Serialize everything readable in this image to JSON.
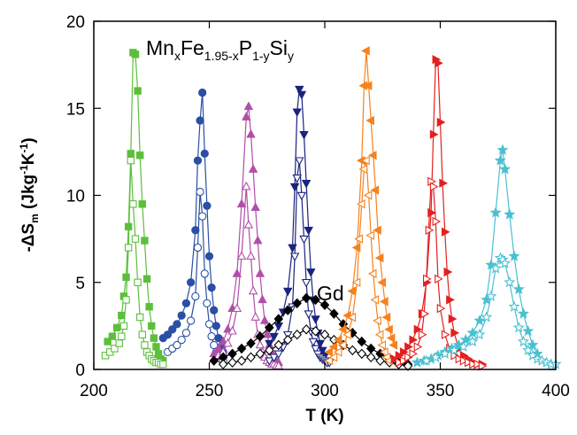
{
  "chart_data": {
    "type": "scatter",
    "title": "",
    "xlabel": "T (K)",
    "ylabel_main": "-ΔS",
    "ylabel_sub": "m",
    "ylabel_units_prefix": " (Jkg",
    "ylabel_units_exp1": "-1",
    "ylabel_units_mid": "K",
    "ylabel_units_exp2": "-1",
    "ylabel_units_suffix": ")",
    "xlim": [
      200,
      400
    ],
    "ylim": [
      0,
      20
    ],
    "xticks": [
      200,
      250,
      300,
      350,
      400
    ],
    "yticks": [
      0,
      5,
      10,
      15,
      20
    ],
    "grid": false,
    "annotations": {
      "formula": {
        "t1": "Mn",
        "s1": "x",
        "t2": "Fe",
        "s2": "1.95-x",
        "t3": "P",
        "s3": "1-y",
        "t4": "Si",
        "s4": "y"
      },
      "gd_label": "Gd"
    },
    "series": [
      {
        "color": "#5cbf3c",
        "marker": "square",
        "filled": true,
        "x": [
          206,
          208,
          210,
          212,
          213,
          214,
          215,
          216,
          217,
          218,
          219,
          220,
          221,
          222,
          223,
          224,
          225,
          226,
          227,
          228,
          229,
          230
        ],
        "y": [
          1.6,
          1.9,
          2.4,
          3.1,
          4.2,
          5.3,
          8.2,
          12.4,
          18.2,
          18.1,
          16,
          12.3,
          9.5,
          7.4,
          5.2,
          3.6,
          2.5,
          1.8,
          1.3,
          0.9,
          0.6,
          0.5
        ]
      },
      {
        "color": "#5cbf3c",
        "marker": "square",
        "filled": false,
        "x": [
          205,
          207,
          209,
          211,
          212,
          213,
          214,
          215,
          216,
          217,
          218,
          219,
          220,
          221,
          222,
          223,
          224,
          225,
          226,
          227,
          228,
          229,
          230
        ],
        "y": [
          0.8,
          1.0,
          1.2,
          1.5,
          1.9,
          2.5,
          4.0,
          7.0,
          12.0,
          9.5,
          7.5,
          5.0,
          3.0,
          2.0,
          1.4,
          1.0,
          0.8,
          0.6,
          0.5,
          0.4,
          0.4,
          0.3,
          0.3
        ]
      },
      {
        "color": "#2a4fa5",
        "marker": "circle",
        "filled": true,
        "x": [
          230,
          232,
          234,
          236,
          238,
          240,
          242,
          244,
          245,
          246,
          247,
          248,
          249,
          250,
          251,
          252,
          253,
          254,
          255,
          256
        ],
        "y": [
          1.8,
          2.0,
          2.3,
          2.6,
          3.1,
          3.8,
          5.0,
          8.0,
          12.0,
          14.3,
          15.9,
          12.4,
          9.4,
          6.5,
          4.7,
          3.4,
          2.5,
          1.8,
          1.3,
          1.0
        ]
      },
      {
        "color": "#2a4fa5",
        "marker": "circle",
        "filled": false,
        "x": [
          232,
          234,
          236,
          238,
          240,
          242,
          244,
          245,
          246,
          247,
          248,
          249,
          250,
          251,
          252,
          253,
          254,
          255,
          256
        ],
        "y": [
          1.0,
          1.2,
          1.4,
          1.7,
          2.1,
          2.8,
          4.2,
          7.0,
          10.2,
          8.8,
          5.5,
          3.8,
          2.6,
          1.9,
          1.4,
          1.0,
          0.8,
          0.6,
          0.5
        ]
      },
      {
        "color": "#b14ea8",
        "marker": "triangle-up",
        "filled": true,
        "x": [
          252,
          254,
          256,
          258,
          260,
          262,
          264,
          266,
          267,
          268,
          269,
          270,
          271,
          272,
          273,
          274,
          275,
          276,
          277,
          278,
          279,
          280
        ],
        "y": [
          0.9,
          1.2,
          1.6,
          2.3,
          3.5,
          5.5,
          9.5,
          14.5,
          15.1,
          13.5,
          11.5,
          9.3,
          7.4,
          5.5,
          4.0,
          2.8,
          2.0,
          1.4,
          1.0,
          0.7,
          0.5,
          0.4
        ]
      },
      {
        "color": "#b14ea8",
        "marker": "triangle-up",
        "filled": false,
        "x": [
          252,
          254,
          256,
          258,
          260,
          262,
          264,
          266,
          267,
          268,
          269,
          270,
          271,
          272,
          273,
          274,
          275,
          276,
          277,
          278,
          279,
          280
        ],
        "y": [
          0.6,
          0.8,
          1.0,
          1.5,
          2.2,
          3.5,
          6.5,
          10.5,
          8.3,
          6.5,
          4.5,
          3.0,
          2.0,
          1.4,
          1.0,
          0.7,
          0.5,
          0.4,
          0.3,
          0.3,
          0.2,
          0.2
        ]
      },
      {
        "color": "#1a237e",
        "marker": "triangle-down",
        "filled": true,
        "x": [
          276,
          278,
          280,
          282,
          284,
          286,
          287,
          288,
          289,
          290,
          291,
          292,
          293,
          294,
          295,
          296,
          297,
          298,
          299,
          300
        ],
        "y": [
          1.5,
          1.9,
          2.5,
          3.3,
          4.5,
          7.0,
          10.5,
          14.8,
          16.1,
          15.8,
          13.5,
          10.7,
          8.0,
          5.6,
          4.0,
          2.9,
          2.1,
          1.5,
          1.1,
          0.8
        ]
      },
      {
        "color": "#1a237e",
        "marker": "triangle-down",
        "filled": false,
        "x": [
          276,
          278,
          280,
          282,
          284,
          286,
          287,
          288,
          289,
          290,
          291,
          292,
          293,
          294,
          295,
          296,
          297,
          298,
          299,
          300,
          301,
          302
        ],
        "y": [
          0.5,
          0.7,
          0.9,
          1.3,
          2.0,
          3.6,
          6.5,
          11.0,
          12.0,
          10.0,
          7.5,
          5.0,
          3.2,
          2.2,
          1.6,
          1.2,
          0.9,
          0.7,
          0.6,
          0.5,
          0.4,
          0.4
        ]
      },
      {
        "color": "#000000",
        "marker": "diamond",
        "filled": true,
        "x": [
          252,
          256,
          260,
          264,
          268,
          272,
          276,
          280,
          284,
          288,
          292,
          296,
          300,
          304,
          308,
          312,
          316,
          320,
          324,
          328,
          332,
          336
        ],
        "y": [
          0.5,
          0.7,
          0.9,
          1.2,
          1.5,
          1.9,
          2.4,
          2.9,
          3.4,
          3.8,
          4.1,
          4.0,
          3.7,
          3.2,
          2.6,
          2.1,
          1.6,
          1.2,
          0.9,
          0.6,
          0.4,
          0.3
        ]
      },
      {
        "color": "#000000",
        "marker": "diamond",
        "filled": false,
        "x": [
          256,
          260,
          264,
          268,
          272,
          276,
          280,
          284,
          288,
          292,
          296,
          300,
          304,
          308,
          312,
          316,
          320,
          324,
          328,
          332,
          336
        ],
        "y": [
          0.3,
          0.4,
          0.5,
          0.7,
          0.9,
          1.1,
          1.4,
          1.7,
          2.0,
          2.3,
          2.2,
          2.0,
          1.7,
          1.4,
          1.1,
          0.9,
          0.7,
          0.5,
          0.4,
          0.3,
          0.2
        ]
      },
      {
        "color": "#f5821f",
        "marker": "triangle-left",
        "filled": true,
        "x": [
          302,
          304,
          306,
          308,
          310,
          312,
          314,
          316,
          317,
          318,
          319,
          320,
          321,
          322,
          323,
          324,
          325,
          326,
          327,
          328,
          329,
          330
        ],
        "y": [
          1.0,
          1.3,
          1.7,
          2.3,
          3.1,
          4.5,
          7.0,
          12.0,
          16.3,
          18.3,
          16.3,
          14.3,
          12.3,
          10.3,
          8.0,
          6.4,
          5.0,
          3.9,
          3.0,
          2.3,
          1.8,
          1.4
        ]
      },
      {
        "color": "#f5821f",
        "marker": "triangle-left",
        "filled": false,
        "x": [
          302,
          304,
          306,
          308,
          310,
          312,
          314,
          315,
          316,
          317,
          318,
          319,
          320,
          321,
          322,
          323,
          324,
          325,
          326,
          327,
          328
        ],
        "y": [
          0.5,
          0.7,
          1.0,
          1.4,
          2.0,
          3.0,
          5.0,
          7.5,
          9.5,
          11.5,
          12.0,
          10.0,
          7.7,
          5.5,
          4.0,
          2.8,
          2.0,
          1.4,
          1.0,
          0.7,
          0.5
        ]
      },
      {
        "color": "#e3201f",
        "marker": "triangle-right",
        "filled": true,
        "x": [
          330,
          332,
          334,
          336,
          338,
          340,
          342,
          344,
          346,
          347,
          348,
          349,
          350,
          351,
          352,
          353,
          354,
          355,
          356,
          358,
          360,
          362,
          364,
          366,
          368
        ],
        "y": [
          0.6,
          0.8,
          1.0,
          1.3,
          1.7,
          2.3,
          3.2,
          5.0,
          9.0,
          13.5,
          17.8,
          17.6,
          14.2,
          10.7,
          7.9,
          5.6,
          4.0,
          2.9,
          2.1,
          1.2,
          0.8,
          0.6,
          0.4,
          0.3,
          0.3
        ]
      },
      {
        "color": "#e3201f",
        "marker": "triangle-right",
        "filled": false,
        "x": [
          332,
          334,
          336,
          338,
          340,
          342,
          343,
          344,
          345,
          346,
          347,
          348,
          349,
          350,
          352,
          354,
          356,
          358,
          360,
          362,
          364,
          366,
          368
        ],
        "y": [
          0.4,
          0.5,
          0.7,
          0.9,
          1.3,
          2.0,
          3.2,
          5.2,
          8.0,
          10.8,
          10.5,
          8.5,
          5.2,
          3.5,
          2.0,
          1.2,
          0.8,
          0.6,
          0.5,
          0.4,
          0.3,
          0.3,
          0.2
        ]
      },
      {
        "color": "#4ac0d1",
        "marker": "star",
        "filled": true,
        "x": [
          340,
          343,
          346,
          349,
          352,
          355,
          358,
          361,
          364,
          367,
          370,
          372,
          374,
          376,
          377,
          378,
          380,
          382,
          384,
          386,
          388,
          390,
          392
        ],
        "y": [
          0.4,
          0.5,
          0.6,
          0.8,
          1.0,
          1.2,
          1.4,
          1.7,
          2.1,
          2.8,
          4.0,
          6.0,
          9.0,
          12.0,
          12.6,
          11.5,
          8.9,
          6.5,
          4.6,
          3.2,
          2.2,
          1.4,
          0.9
        ]
      },
      {
        "color": "#4ac0d1",
        "marker": "star",
        "filled": false,
        "x": [
          344,
          348,
          352,
          356,
          360,
          364,
          367,
          370,
          372,
          374,
          376,
          377,
          378,
          380,
          382,
          384,
          386,
          388,
          390,
          392,
          394,
          396,
          398,
          400
        ],
        "y": [
          0.5,
          0.7,
          0.9,
          1.1,
          1.3,
          1.6,
          2.0,
          3.0,
          4.2,
          5.8,
          6.4,
          6.3,
          6.1,
          5.0,
          3.6,
          2.4,
          1.6,
          1.1,
          0.8,
          0.6,
          0.5,
          0.4,
          0.3,
          0.3
        ]
      }
    ]
  }
}
